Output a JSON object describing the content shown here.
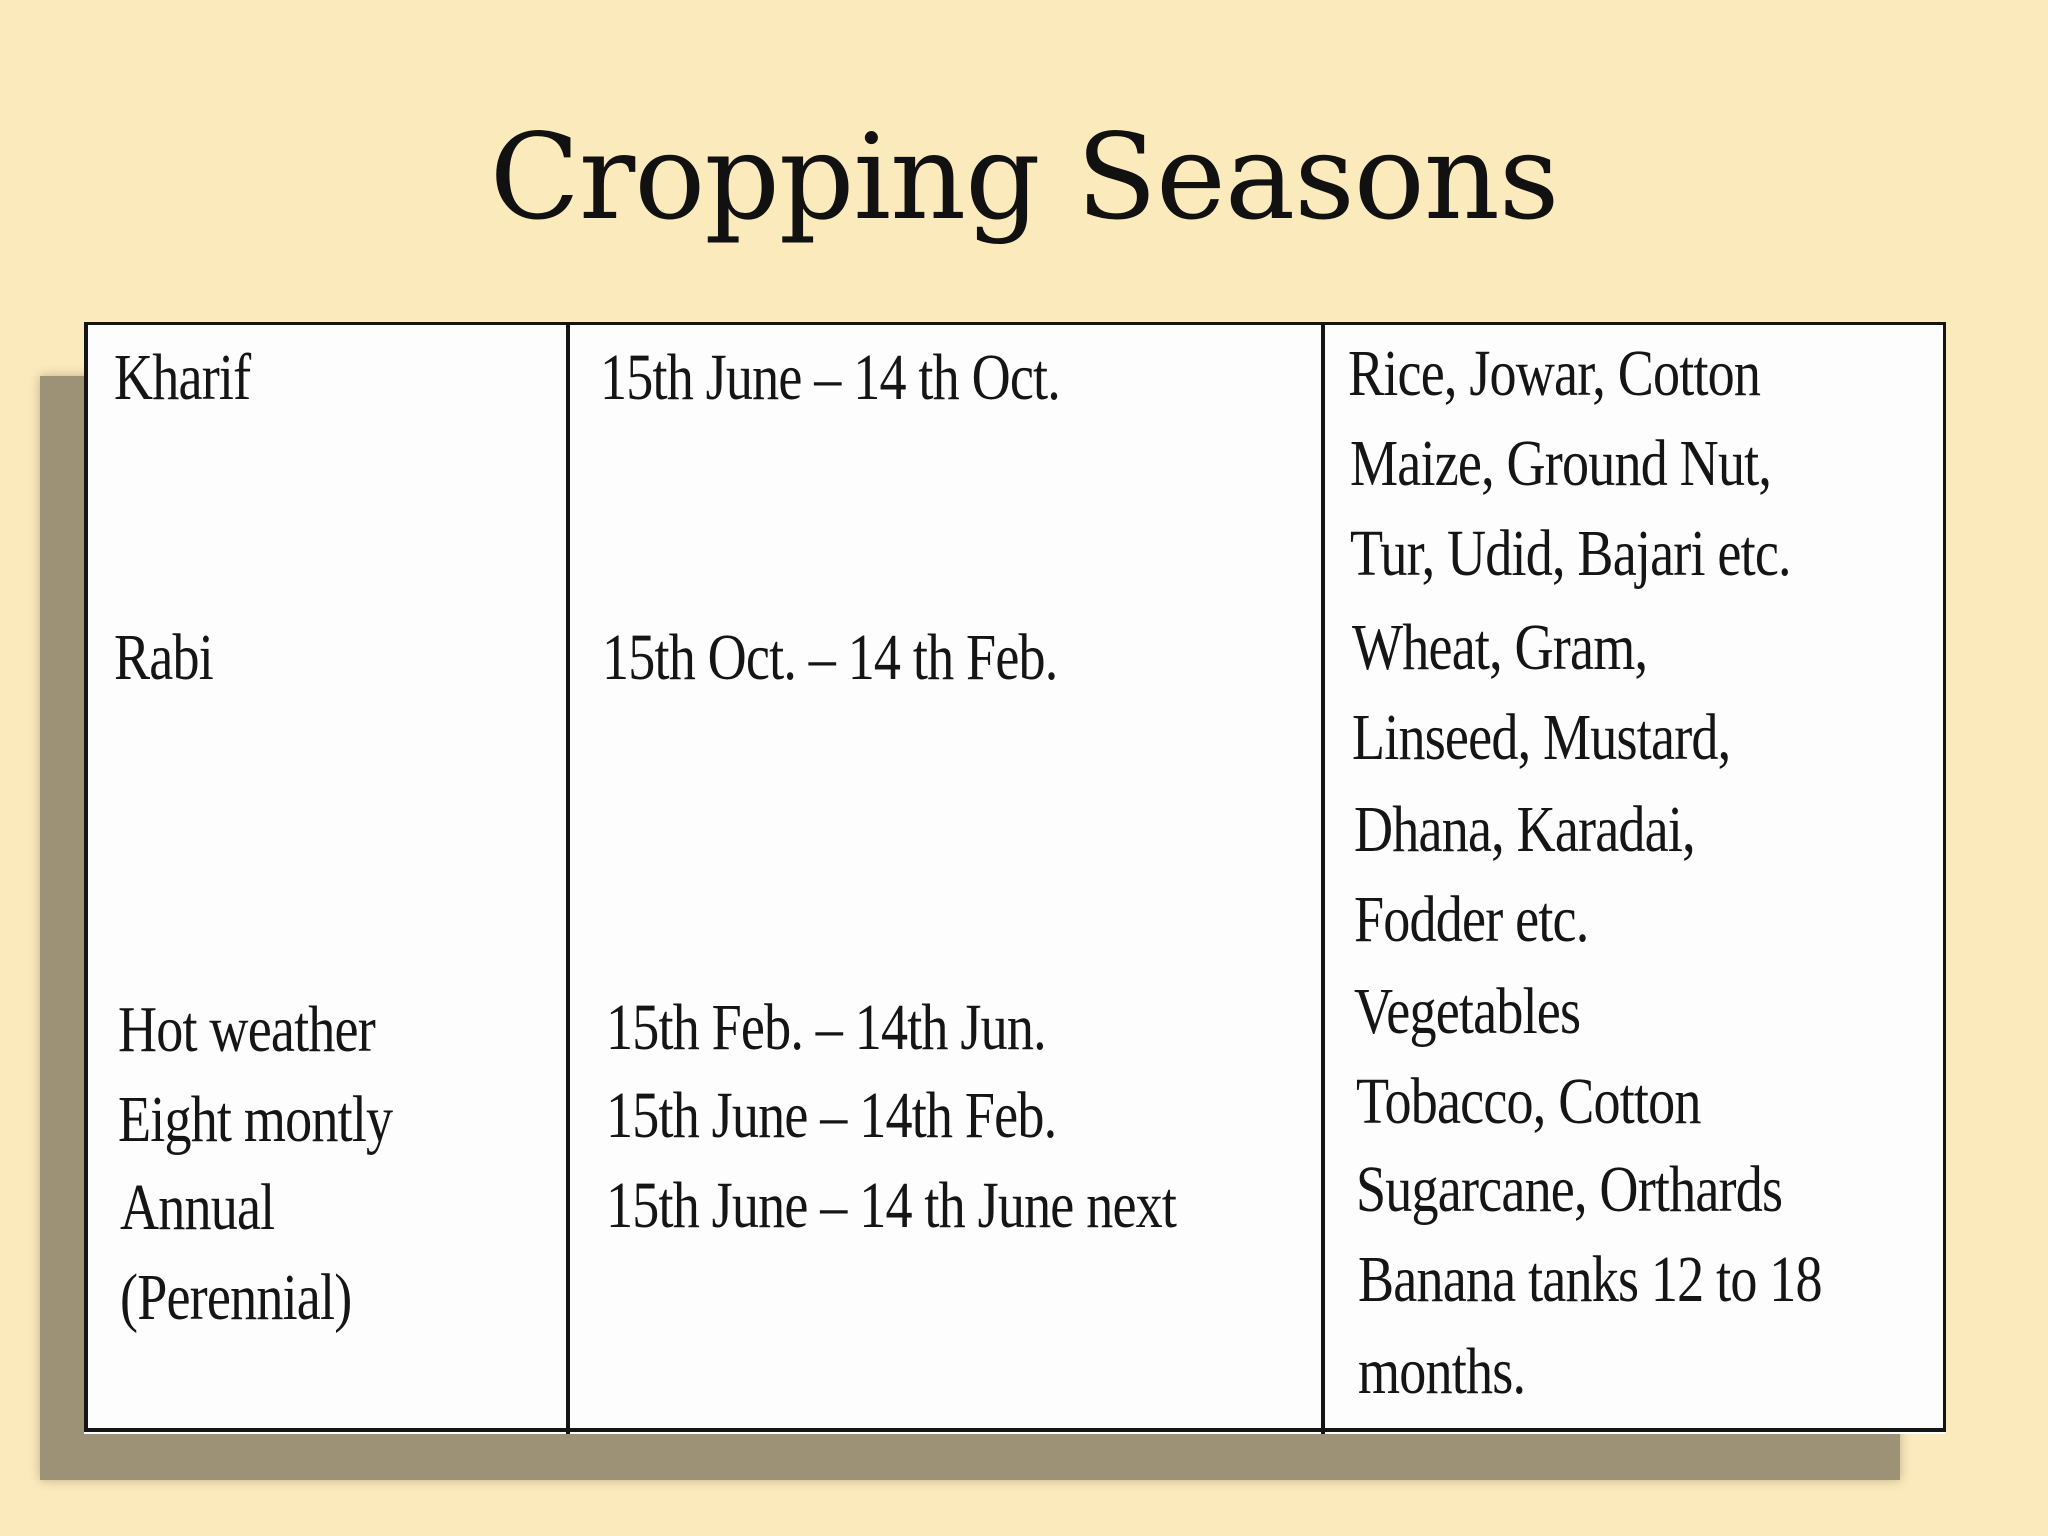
{
  "title": "Cropping Seasons",
  "table": {
    "seasons": {
      "kharif": "Kharif",
      "rabi": "Rabi",
      "hot_weather": "Hot weather",
      "eight_montly": "Eight montly",
      "annual": "Annual",
      "perennial": "(Perennial)"
    },
    "periods": {
      "kharif": "15th June – 14 th Oct.",
      "rabi": "15th Oct. – 14 th Feb.",
      "hot_weather": "15th Feb. – 14th Jun.",
      "eight_montly": "15th June – 14th Feb.",
      "annual": "15th June – 14 th June next"
    },
    "crops": {
      "line1": "Rice, Jowar, Cotton",
      "line2": "Maize, Ground Nut,",
      "line3": "Tur, Udid, Bajari etc.",
      "line4": "Wheat, Gram,",
      "line5": "Linseed, Mustard,",
      "line6": "Dhana, Karadai,",
      "line7": "Fodder etc.",
      "line8": "Vegetables",
      "line9": "Tobacco, Cotton",
      "line10": "Sugarcane, Orthards",
      "line11": "Banana tanks 12 to 18",
      "line12": "months."
    }
  }
}
